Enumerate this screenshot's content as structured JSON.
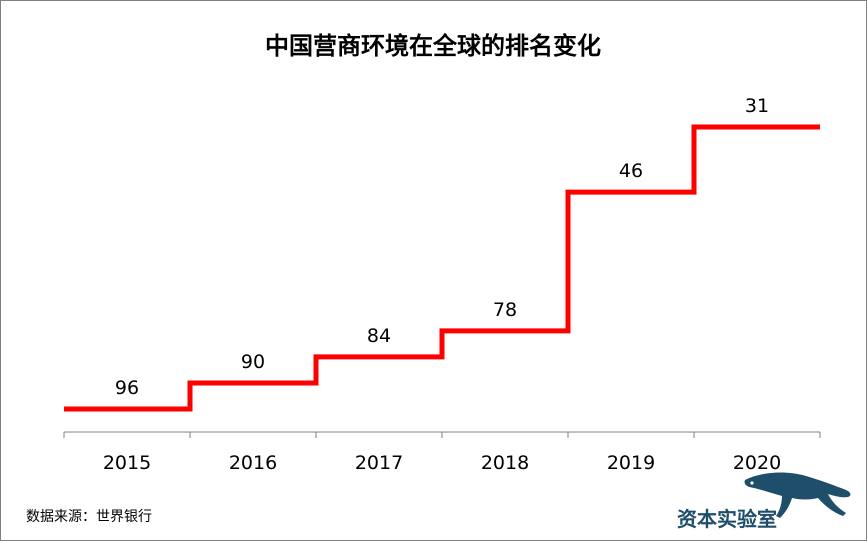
{
  "colors": {
    "series": "#ff0000",
    "axis": "#808080",
    "frame": "#7f7f7f",
    "logo": "#1f4e6b"
  },
  "source_text": "数据来源：世界银行",
  "logo": {
    "text": "资本实验室",
    "icon": "leopard-icon"
  },
  "chart_data": {
    "type": "line",
    "title": "中国营商环境在全球的排名变化",
    "categories": [
      "2015",
      "2016",
      "2017",
      "2018",
      "2019",
      "2020"
    ],
    "series": [
      {
        "values": [
          96,
          90,
          84,
          78,
          46,
          31
        ]
      }
    ],
    "step": true,
    "y_inverted": true,
    "ylim": [
      100,
      25
    ],
    "xlabel": "",
    "ylabel": "",
    "grid": false,
    "legend": "none",
    "data_labels": true
  }
}
